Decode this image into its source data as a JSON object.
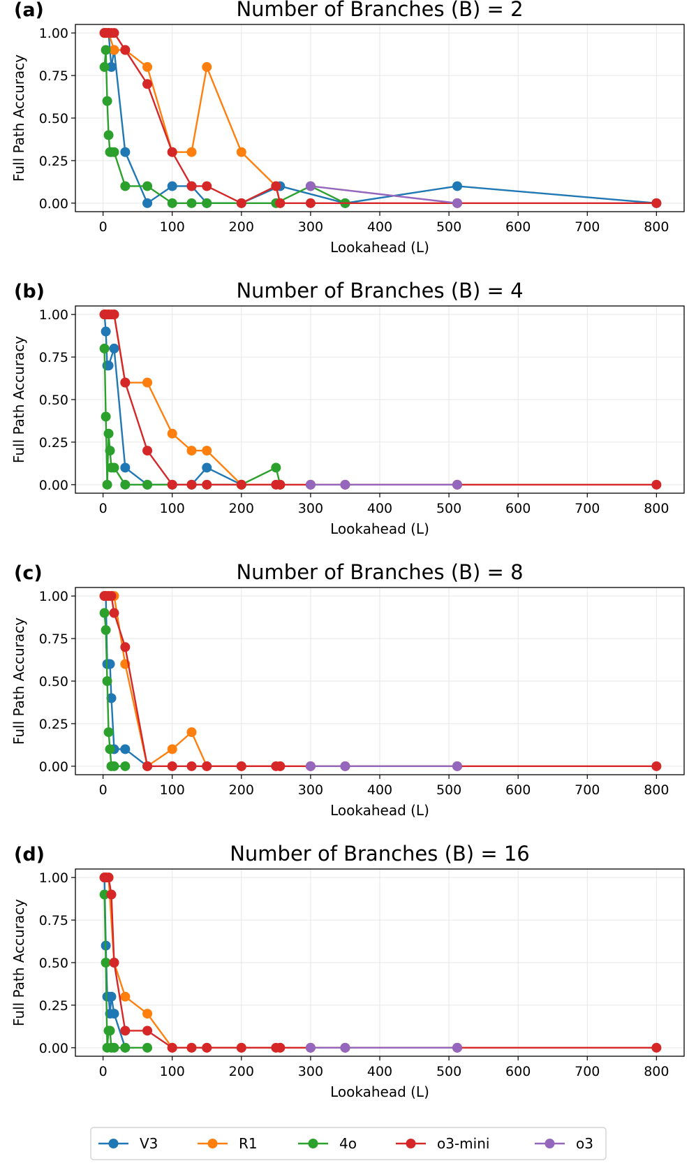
{
  "legend": {
    "placement": "bottom-center",
    "entries": [
      {
        "name": "V3",
        "color": "#1f77b4"
      },
      {
        "name": "R1",
        "color": "#ff7f0e"
      },
      {
        "name": "4o",
        "color": "#2ca02c"
      },
      {
        "name": "o3-mini",
        "color": "#d62728"
      },
      {
        "name": "o3",
        "color": "#9467bd"
      }
    ]
  },
  "chart_data": [
    {
      "type": "line",
      "letter": "(a)",
      "title": "Number of Branches (B) = 2",
      "xlabel": "Lookahead (L)",
      "ylabel": "Full Path Accuracy",
      "xlim": [
        -40,
        840
      ],
      "ylim": [
        -0.05,
        1.05
      ],
      "xticks": [
        0,
        100,
        200,
        300,
        400,
        500,
        600,
        700,
        800
      ],
      "yticks": [
        "0.00",
        "0.25",
        "0.50",
        "0.75",
        "1.00"
      ],
      "grid": true,
      "series": [
        {
          "name": "V3",
          "color": "#1f77b4",
          "x": [
            2,
            4,
            8,
            12,
            16,
            32,
            64,
            100,
            128,
            150,
            200,
            256,
            350,
            512,
            800
          ],
          "y": [
            1.0,
            1.0,
            1.0,
            0.8,
            0.9,
            0.3,
            0.0,
            0.1,
            0.1,
            0.0,
            0.0,
            0.1,
            0.0,
            0.1,
            0.0
          ]
        },
        {
          "name": "R1",
          "color": "#ff7f0e",
          "x": [
            2,
            4,
            8,
            16,
            32,
            64,
            100,
            128,
            150,
            200,
            250,
            256
          ],
          "y": [
            1.0,
            1.0,
            1.0,
            0.9,
            0.9,
            0.8,
            0.3,
            0.3,
            0.8,
            0.3,
            0.1,
            0.0
          ]
        },
        {
          "name": "4o",
          "color": "#2ca02c",
          "x": [
            2,
            4,
            6,
            8,
            10,
            12,
            16,
            32,
            64,
            100,
            128,
            150,
            250,
            300,
            350
          ],
          "y": [
            0.8,
            0.9,
            0.6,
            0.4,
            0.3,
            0.3,
            0.3,
            0.1,
            0.1,
            0.0,
            0.0,
            0.0,
            0.0,
            0.1,
            0.0
          ]
        },
        {
          "name": "o3-mini",
          "color": "#d62728",
          "x": [
            2,
            4,
            8,
            12,
            16,
            32,
            64,
            100,
            128,
            150,
            200,
            250,
            256,
            300,
            512,
            800
          ],
          "y": [
            1.0,
            1.0,
            1.0,
            1.0,
            1.0,
            0.9,
            0.7,
            0.3,
            0.1,
            0.1,
            0.0,
            0.1,
            0.0,
            0.0,
            0.0,
            0.0
          ]
        },
        {
          "name": "o3",
          "color": "#9467bd",
          "x": [
            300,
            512
          ],
          "y": [
            0.1,
            0.0
          ]
        }
      ]
    },
    {
      "type": "line",
      "letter": "(b)",
      "title": "Number of Branches (B) = 4",
      "xlabel": "Lookahead (L)",
      "ylabel": "Full Path Accuracy",
      "xlim": [
        -40,
        840
      ],
      "ylim": [
        -0.05,
        1.05
      ],
      "xticks": [
        0,
        100,
        200,
        300,
        400,
        500,
        600,
        700,
        800
      ],
      "yticks": [
        "0.00",
        "0.25",
        "0.50",
        "0.75",
        "1.00"
      ],
      "grid": true,
      "series": [
        {
          "name": "V3",
          "color": "#1f77b4",
          "x": [
            2,
            4,
            6,
            8,
            16,
            32,
            64,
            100,
            128,
            150,
            200
          ],
          "y": [
            1.0,
            0.9,
            0.7,
            0.7,
            0.8,
            0.1,
            0.0,
            0.0,
            0.0,
            0.1,
            0.0
          ]
        },
        {
          "name": "R1",
          "color": "#ff7f0e",
          "x": [
            2,
            4,
            8,
            16,
            32,
            64,
            100,
            128,
            150,
            200,
            256
          ],
          "y": [
            1.0,
            1.0,
            1.0,
            1.0,
            0.6,
            0.6,
            0.3,
            0.2,
            0.2,
            0.0,
            0.0
          ]
        },
        {
          "name": "4o",
          "color": "#2ca02c",
          "x": [
            2,
            4,
            6,
            8,
            10,
            12,
            16,
            32,
            64,
            100,
            128,
            150,
            200,
            250,
            256
          ],
          "y": [
            0.8,
            0.4,
            0.0,
            0.3,
            0.2,
            0.1,
            0.1,
            0.0,
            0.0,
            0.0,
            0.0,
            0.0,
            0.0,
            0.1,
            0.0
          ]
        },
        {
          "name": "o3-mini",
          "color": "#d62728",
          "x": [
            2,
            4,
            8,
            12,
            16,
            32,
            64,
            100,
            128,
            150,
            200,
            250,
            256,
            300,
            350,
            512,
            800
          ],
          "y": [
            1.0,
            1.0,
            1.0,
            1.0,
            1.0,
            0.6,
            0.2,
            0.0,
            0.0,
            0.0,
            0.0,
            0.0,
            0.0,
            0.0,
            0.0,
            0.0,
            0.0
          ]
        },
        {
          "name": "o3",
          "color": "#9467bd",
          "x": [
            300,
            350,
            512
          ],
          "y": [
            0.0,
            0.0,
            0.0
          ]
        }
      ]
    },
    {
      "type": "line",
      "letter": "(c)",
      "title": "Number of Branches (B) = 8",
      "xlabel": "Lookahead (L)",
      "ylabel": "Full Path Accuracy",
      "xlim": [
        -40,
        840
      ],
      "ylim": [
        -0.05,
        1.05
      ],
      "xticks": [
        0,
        100,
        200,
        300,
        400,
        500,
        600,
        700,
        800
      ],
      "yticks": [
        "0.00",
        "0.25",
        "0.50",
        "0.75",
        "1.00"
      ],
      "grid": true,
      "series": [
        {
          "name": "V3",
          "color": "#1f77b4",
          "x": [
            2,
            4,
            6,
            8,
            10,
            12,
            16,
            32,
            64
          ],
          "y": [
            1.0,
            1.0,
            0.6,
            0.6,
            0.6,
            0.4,
            0.1,
            0.1,
            0.0
          ]
        },
        {
          "name": "R1",
          "color": "#ff7f0e",
          "x": [
            2,
            4,
            8,
            12,
            16,
            32,
            64,
            100,
            128,
            150,
            200,
            256
          ],
          "y": [
            1.0,
            1.0,
            1.0,
            1.0,
            1.0,
            0.6,
            0.0,
            0.1,
            0.2,
            0.0,
            0.0,
            0.0
          ]
        },
        {
          "name": "4o",
          "color": "#2ca02c",
          "x": [
            2,
            4,
            6,
            8,
            10,
            12,
            16,
            32
          ],
          "y": [
            0.9,
            0.8,
            0.5,
            0.2,
            0.1,
            0.0,
            0.0,
            0.0
          ]
        },
        {
          "name": "o3-mini",
          "color": "#d62728",
          "x": [
            2,
            4,
            8,
            12,
            16,
            32,
            64,
            100,
            128,
            150,
            200,
            250,
            256,
            300,
            350,
            512,
            800
          ],
          "y": [
            1.0,
            1.0,
            1.0,
            1.0,
            0.9,
            0.7,
            0.0,
            0.0,
            0.0,
            0.0,
            0.0,
            0.0,
            0.0,
            0.0,
            0.0,
            0.0,
            0.0
          ]
        },
        {
          "name": "o3",
          "color": "#9467bd",
          "x": [
            300,
            350,
            512
          ],
          "y": [
            0.0,
            0.0,
            0.0
          ]
        }
      ]
    },
    {
      "type": "line",
      "letter": "(d)",
      "title": "Number of Branches (B) = 16",
      "xlabel": "Lookahead (L)",
      "ylabel": "Full Path Accuracy",
      "xlim": [
        -40,
        840
      ],
      "ylim": [
        -0.05,
        1.05
      ],
      "xticks": [
        0,
        100,
        200,
        300,
        400,
        500,
        600,
        700,
        800
      ],
      "yticks": [
        "0.00",
        "0.25",
        "0.50",
        "0.75",
        "1.00"
      ],
      "grid": true,
      "series": [
        {
          "name": "V3",
          "color": "#1f77b4",
          "x": [
            2,
            4,
            6,
            8,
            10,
            12,
            16,
            32
          ],
          "y": [
            1.0,
            0.6,
            0.3,
            0.3,
            0.2,
            0.3,
            0.2,
            0.0
          ]
        },
        {
          "name": "R1",
          "color": "#ff7f0e",
          "x": [
            2,
            4,
            8,
            16,
            32,
            64,
            100,
            128,
            150,
            200,
            256
          ],
          "y": [
            1.0,
            1.0,
            1.0,
            0.5,
            0.3,
            0.2,
            0.0,
            0.0,
            0.0,
            0.0,
            0.0
          ]
        },
        {
          "name": "4o",
          "color": "#2ca02c",
          "x": [
            2,
            4,
            6,
            8,
            10,
            12,
            16,
            32,
            64
          ],
          "y": [
            0.9,
            0.5,
            0.0,
            0.1,
            0.1,
            0.0,
            0.0,
            0.0,
            0.0
          ]
        },
        {
          "name": "o3-mini",
          "color": "#d62728",
          "x": [
            2,
            4,
            8,
            12,
            16,
            32,
            64,
            100,
            128,
            150,
            200,
            250,
            256,
            300,
            350,
            512,
            800
          ],
          "y": [
            1.0,
            1.0,
            1.0,
            0.9,
            0.5,
            0.1,
            0.1,
            0.0,
            0.0,
            0.0,
            0.0,
            0.0,
            0.0,
            0.0,
            0.0,
            0.0,
            0.0
          ]
        },
        {
          "name": "o3",
          "color": "#9467bd",
          "x": [
            300,
            350,
            512
          ],
          "y": [
            0.0,
            0.0,
            0.0
          ]
        }
      ]
    }
  ]
}
